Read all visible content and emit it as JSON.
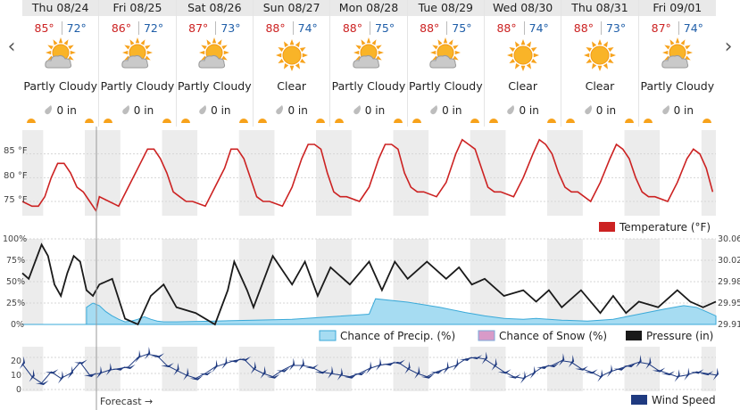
{
  "nav": {
    "prev_symbol": "‹",
    "next_symbol": "›"
  },
  "days": [
    {
      "label": "Thu 08/24",
      "high": "85°",
      "low": "72°",
      "icon": "partly-cloudy-icon",
      "condition": "Partly Cloudy",
      "precip": "0 in"
    },
    {
      "label": "Fri 08/25",
      "high": "86°",
      "low": "72°",
      "icon": "partly-cloudy-icon",
      "condition": "Partly Cloudy",
      "precip": "0 in"
    },
    {
      "label": "Sat 08/26",
      "high": "87°",
      "low": "73°",
      "icon": "partly-cloudy-icon",
      "condition": "Partly Cloudy",
      "precip": "0 in"
    },
    {
      "label": "Sun 08/27",
      "high": "88°",
      "low": "74°",
      "icon": "sun-icon",
      "condition": "Clear",
      "precip": "0 in"
    },
    {
      "label": "Mon 08/28",
      "high": "88°",
      "low": "75°",
      "icon": "partly-cloudy-icon",
      "condition": "Partly Cloudy",
      "precip": "0 in"
    },
    {
      "label": "Tue 08/29",
      "high": "88°",
      "low": "75°",
      "icon": "partly-cloudy-icon",
      "condition": "Partly Cloudy",
      "precip": "0 in"
    },
    {
      "label": "Wed 08/30",
      "high": "88°",
      "low": "74°",
      "icon": "sun-icon",
      "condition": "Clear",
      "precip": "0 in"
    },
    {
      "label": "Thu 08/31",
      "high": "88°",
      "low": "73°",
      "icon": "sun-icon",
      "condition": "Clear",
      "precip": "0 in"
    },
    {
      "label": "Fri 09/01",
      "high": "87°",
      "low": "74°",
      "icon": "partly-cloudy-icon",
      "condition": "Partly Cloudy",
      "precip": "0 in"
    }
  ],
  "colors": {
    "temperature": "#cc2222",
    "precip_fill": "#a6dcf2",
    "precip_line": "#3aa9d8",
    "snow": "#d89ac8",
    "pressure": "#1a1a1a",
    "wind": "#1f3a80",
    "night_band": "#ececec"
  },
  "chart_data": [
    {
      "type": "line",
      "x_unit": "hours since Thu 08/24 00:00",
      "series": [
        {
          "name": "Temperature (°F)",
          "x": [
            0,
            3,
            5,
            7,
            9,
            11,
            13,
            15,
            17,
            19,
            21,
            23,
            24,
            27,
            30,
            33,
            36,
            39,
            41,
            43,
            45,
            47,
            49,
            51,
            53,
            57,
            60,
            63,
            65,
            67,
            69,
            71,
            73,
            75,
            77,
            81,
            84,
            87,
            89,
            91,
            93,
            95,
            97,
            99,
            101,
            105,
            108,
            111,
            113,
            115,
            117,
            119,
            121,
            123,
            125,
            129,
            132,
            135,
            137,
            139,
            141,
            143,
            145,
            147,
            149,
            153,
            156,
            159,
            161,
            163,
            165,
            167,
            169,
            171,
            173,
            177,
            180,
            183,
            185,
            187,
            189,
            191,
            193,
            195,
            197,
            201,
            204,
            207,
            209,
            211,
            213,
            215
          ],
          "values": [
            75,
            74,
            74,
            76,
            80,
            83,
            83,
            81,
            78,
            77,
            75,
            73,
            76,
            75,
            74,
            78,
            82,
            86,
            86,
            84,
            81,
            77,
            76,
            75,
            75,
            74,
            78,
            82,
            86,
            86,
            84,
            80,
            76,
            75,
            75,
            74,
            78,
            84,
            87,
            87,
            86,
            81,
            77,
            76,
            76,
            75,
            78,
            84,
            87,
            87,
            86,
            81,
            78,
            77,
            77,
            76,
            79,
            85,
            88,
            87,
            86,
            82,
            78,
            77,
            77,
            76,
            80,
            85,
            88,
            87,
            85,
            81,
            78,
            77,
            77,
            75,
            79,
            84,
            87,
            86,
            84,
            80,
            77,
            76,
            76,
            75,
            79,
            84,
            86,
            85,
            82,
            77
          ]
        }
      ],
      "ylim": [
        72,
        90
      ],
      "yticks": [
        "75 °F",
        "80 °F",
        "85 °F"
      ],
      "legend": "Temperature (°F)"
    },
    {
      "type": "area",
      "x_unit": "hours since Thu 08/24 00:00",
      "series": [
        {
          "name": "Chance of Precip. (%)",
          "axis": "left",
          "x": [
            0,
            20,
            20,
            22,
            24,
            26,
            28,
            30,
            32,
            34,
            36,
            38,
            40,
            42,
            44,
            46,
            48,
            60,
            72,
            84,
            96,
            108,
            110,
            120,
            130,
            138,
            144,
            150,
            156,
            160,
            168,
            176,
            184,
            192,
            200,
            206,
            210,
            216
          ],
          "values": [
            0,
            0,
            20,
            25,
            22,
            15,
            10,
            6,
            3,
            4,
            6,
            9,
            6,
            4,
            3,
            3,
            3,
            4,
            5,
            6,
            9,
            12,
            30,
            26,
            20,
            14,
            10,
            7,
            6,
            7,
            5,
            4,
            6,
            12,
            18,
            22,
            20,
            10
          ]
        },
        {
          "name": "Pressure (in)",
          "axis": "right",
          "x": [
            0,
            2,
            4,
            6,
            8,
            10,
            12,
            14,
            16,
            18,
            20,
            22,
            24,
            28,
            32,
            36,
            40,
            44,
            48,
            54,
            60,
            64,
            66,
            70,
            72,
            78,
            84,
            88,
            92,
            96,
            102,
            108,
            112,
            116,
            120,
            126,
            132,
            136,
            140,
            144,
            150,
            156,
            160,
            164,
            168,
            174,
            180,
            184,
            188,
            192,
            198,
            204,
            208,
            212,
            216
          ],
          "values": [
            30.0,
            29.99,
            30.02,
            30.05,
            30.03,
            29.98,
            29.96,
            30.0,
            30.03,
            30.02,
            29.97,
            29.96,
            29.98,
            29.99,
            29.92,
            29.91,
            29.96,
            29.98,
            29.94,
            29.93,
            29.91,
            29.97,
            30.02,
            29.97,
            29.94,
            30.03,
            29.98,
            30.02,
            29.96,
            30.01,
            29.98,
            30.02,
            29.97,
            30.02,
            29.99,
            30.02,
            29.99,
            30.01,
            29.98,
            29.99,
            29.96,
            29.97,
            29.95,
            29.97,
            29.94,
            29.97,
            29.93,
            29.96,
            29.93,
            29.95,
            29.94,
            29.97,
            29.95,
            29.94,
            29.95
          ]
        }
      ],
      "ylim_left": [
        0,
        100
      ],
      "ylim_right": [
        29.91,
        30.06
      ],
      "yticks_left": [
        "0%",
        "25%",
        "50%",
        "75%",
        "100%"
      ],
      "yticks_right": [
        "29.91",
        "29.95",
        "29.98",
        "30.02",
        "30.06"
      ],
      "legend": [
        "Chance of Precip. (%)",
        "Chance of Snow (%)",
        "Pressure (in)"
      ]
    },
    {
      "type": "line",
      "x_unit": "hours since Thu 08/24 00:00",
      "series": [
        {
          "name": "Wind Speed",
          "x": [
            0,
            3,
            6,
            9,
            12,
            15,
            18,
            21,
            24,
            27,
            30,
            33,
            36,
            39,
            42,
            45,
            48,
            51,
            54,
            57,
            60,
            63,
            66,
            69,
            72,
            75,
            78,
            81,
            84,
            87,
            90,
            93,
            96,
            99,
            102,
            105,
            108,
            111,
            114,
            117,
            120,
            123,
            126,
            129,
            132,
            135,
            138,
            141,
            144,
            147,
            150,
            153,
            156,
            159,
            162,
            165,
            168,
            171,
            174,
            177,
            180,
            183,
            186,
            189,
            192,
            195,
            198,
            201,
            204,
            207,
            210,
            213,
            216
          ],
          "values": [
            16,
            8,
            4,
            11,
            7,
            10,
            17,
            9,
            10,
            12,
            13,
            14,
            20,
            22,
            21,
            15,
            12,
            9,
            7,
            10,
            14,
            16,
            18,
            19,
            13,
            10,
            8,
            12,
            15,
            15,
            14,
            11,
            10,
            9,
            8,
            10,
            13,
            15,
            16,
            17,
            13,
            10,
            8,
            11,
            13,
            15,
            19,
            20,
            19,
            15,
            11,
            8,
            7,
            10,
            14,
            15,
            18,
            17,
            13,
            11,
            8,
            11,
            13,
            15,
            17,
            16,
            12,
            10,
            8,
            9,
            11,
            10,
            9
          ]
        }
      ],
      "ylim": [
        0,
        25
      ],
      "yticks": [
        "0",
        "10",
        "20"
      ],
      "legend": "Wind Speed"
    }
  ],
  "forecast_label": "Forecast →",
  "legends": {
    "temperature": "Temperature (°F)",
    "precip": "Chance of Precip. (%)",
    "snow": "Chance of Snow (%)",
    "pressure": "Pressure (in)",
    "wind": "Wind Speed"
  }
}
